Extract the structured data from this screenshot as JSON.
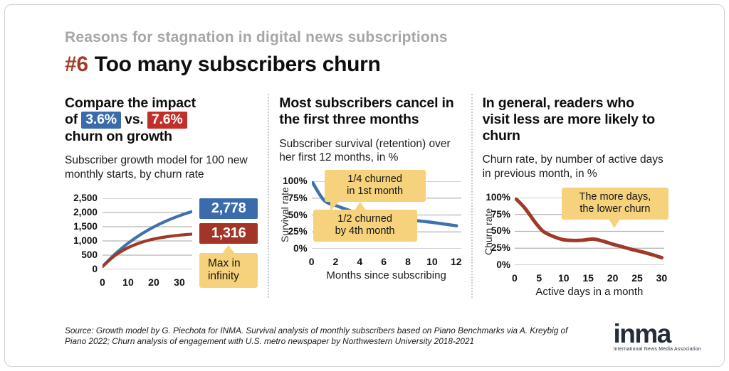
{
  "slide": {
    "eyebrow": "Reasons for stagnation in digital news subscriptions",
    "title_number": "#6",
    "title": "Too many subscribers churn",
    "source": "Source: Growth model by G. Piechota for INMA. Survival analysis of monthly subscribers based on Piano Benchmarks via A. Kreybig of Piano 2022; Churn analysis of engagement with U.S. metro newspaper by Northwestern University 2018-2021",
    "logo": {
      "word": "inma",
      "tagline": "International News Media Association"
    }
  },
  "colors": {
    "accent_red": "#a63a28",
    "badge_blue": "#3a6cab",
    "badge_red": "#c03028",
    "value_box_red": "#a23527",
    "line_blue": "#3f72ad",
    "line_red": "#9e3a29",
    "callout_yellow": "#f6d27d",
    "eyebrow_gray": "#a6a6a6",
    "grid_gray": "#b3b3b3",
    "logo_navy": "#232c39"
  },
  "columns": [
    {
      "heading_line1": "Compare the impact",
      "heading_of": "of",
      "badge_blue": "3.6%",
      "heading_vs": "vs.",
      "badge_red": "7.6%",
      "heading_line3": "churn on growth",
      "subtitle": "Subscriber growth model for 100 new monthly starts, by churn rate"
    },
    {
      "heading": "Most subscribers cancel in the first three months",
      "subtitle": "Subscriber survival (retention) over her first 12 months, in %"
    },
    {
      "heading": "In general, readers who visit less are more likely to churn",
      "subtitle": "Churn rate, by number of active days in previous month, in %"
    }
  ],
  "chart_data": [
    {
      "type": "line",
      "title": "Subscriber growth model for 100 new monthly starts, by churn rate",
      "x": [
        0,
        5,
        10,
        15,
        20,
        25,
        30,
        35
      ],
      "xlim": [
        0,
        35
      ],
      "ylim": [
        0,
        2500
      ],
      "x_ticks": {
        "values": [
          0,
          10,
          20,
          30
        ],
        "labels": [
          "0",
          "10",
          "20",
          "30"
        ]
      },
      "y_ticks": {
        "values": [
          0,
          500,
          1000,
          1500,
          2000,
          2500
        ],
        "labels": [
          "0",
          "500",
          "1,000",
          "1,500",
          "2,000",
          "2,500"
        ]
      },
      "series": [
        {
          "name": "3.6% churn",
          "color": "#3f72ad",
          "stroke": 4.2,
          "label": "2,778",
          "values": [
            100,
            549,
            922,
            1233,
            1492,
            1707,
            1886,
            2036
          ]
        },
        {
          "name": "7.6% churn",
          "color": "#9e3a29",
          "stroke": 4.2,
          "label": "1,316",
          "values": [
            100,
            497,
            764,
            944,
            1066,
            1147,
            1202,
            1239
          ]
        }
      ],
      "annotation": {
        "text": "Max in\ninfinity",
        "refers_to": "series end labels 2,778 and 1,316"
      }
    },
    {
      "type": "line",
      "title": "Subscriber survival (retention) over her first 12 months, in %",
      "ylabel": "Survival rate",
      "xlabel": "Months since subscribing",
      "x": [
        0,
        1,
        2,
        3,
        4,
        5,
        6,
        7,
        8,
        9,
        10,
        11,
        12
      ],
      "xlim": [
        0,
        12.4
      ],
      "ylim": [
        0,
        100
      ],
      "x_ticks": {
        "values": [
          0,
          2,
          4,
          6,
          8,
          10,
          12
        ],
        "labels": [
          "0",
          "2",
          "4",
          "6",
          "8",
          "10",
          "12"
        ]
      },
      "y_ticks": {
        "values": [
          0,
          25,
          50,
          75,
          100
        ],
        "labels": [
          "0%",
          "25%",
          "50%",
          "75%",
          "100%"
        ]
      },
      "series": [
        {
          "name": "Survival rate",
          "color": "#3f72ad",
          "stroke": 4.5,
          "values": [
            100,
            72,
            64,
            57.5,
            51,
            48.5,
            46.5,
            44.5,
            43,
            41,
            39,
            36.5,
            34
          ]
        }
      ],
      "annotations": [
        {
          "text": "1/4 churned\nin 1st month",
          "target_x": 1,
          "target_y": 72
        },
        {
          "text": "1/2 churned\nby 4th month",
          "target_x": 4,
          "target_y": 51
        }
      ]
    },
    {
      "type": "line",
      "title": "Churn rate, by number of active days in previous month, in %",
      "ylabel": "Churn rate",
      "xlabel": "Active days in a month",
      "x": [
        0,
        2,
        4,
        5,
        6,
        8,
        10,
        12,
        14,
        16,
        18,
        20,
        22,
        24,
        26,
        28,
        30
      ],
      "xlim": [
        0,
        30.5
      ],
      "ylim": [
        0,
        100
      ],
      "x_ticks": {
        "values": [
          0,
          5,
          10,
          15,
          20,
          25,
          30
        ],
        "labels": [
          "0",
          "5",
          "10",
          "15",
          "20",
          "25",
          "30"
        ]
      },
      "y_ticks": {
        "values": [
          0,
          25,
          50,
          75,
          100
        ],
        "labels": [
          "0%",
          "25%",
          "50%",
          "75%",
          "100%"
        ]
      },
      "series": [
        {
          "name": "Churn rate",
          "color": "#9e3a29",
          "stroke": 5,
          "values": [
            100,
            85,
            65,
            56,
            49,
            42,
            37.5,
            36.5,
            37,
            38.5,
            35.5,
            31,
            27,
            23,
            19.5,
            15.5,
            11
          ]
        }
      ],
      "annotations": [
        {
          "text": "The more days,\nthe lower churn",
          "target_x": 22,
          "target_y": 30
        }
      ]
    }
  ]
}
